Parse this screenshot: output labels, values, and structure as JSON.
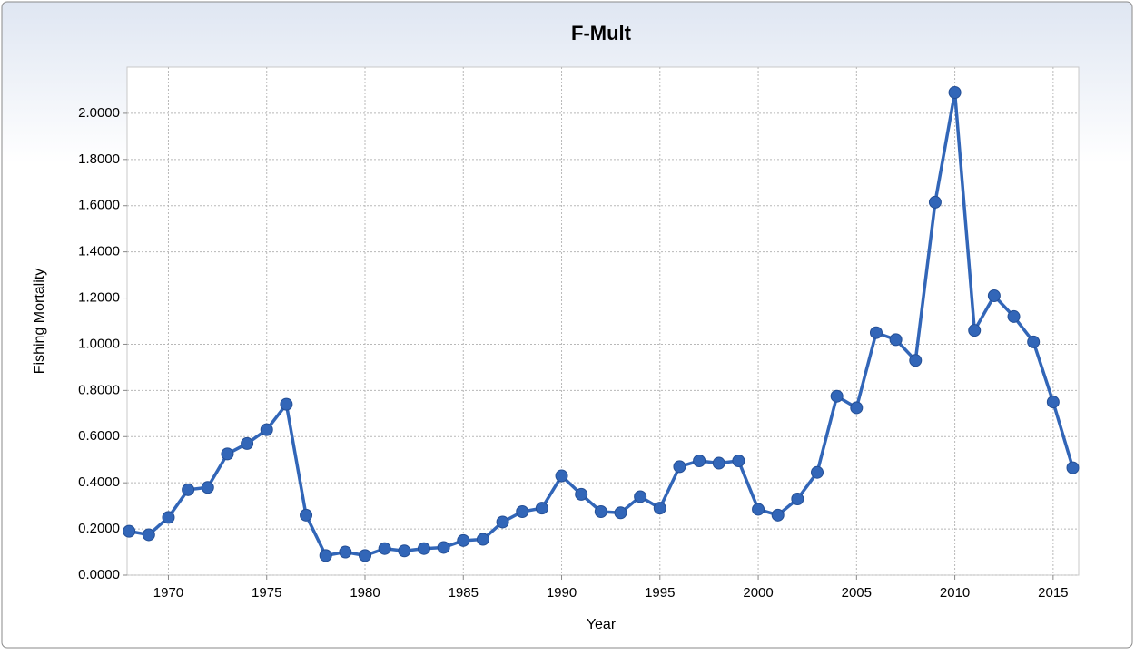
{
  "chart_data": {
    "type": "line",
    "title": "F-Mult",
    "x_label": "Year",
    "y_label": "Fishing Mortality",
    "x": [
      1968,
      1969,
      1970,
      1971,
      1972,
      1973,
      1974,
      1975,
      1976,
      1977,
      1978,
      1979,
      1980,
      1981,
      1982,
      1983,
      1984,
      1985,
      1986,
      1987,
      1988,
      1989,
      1990,
      1991,
      1992,
      1993,
      1994,
      1995,
      1996,
      1997,
      1998,
      1999,
      2000,
      2001,
      2002,
      2003,
      2004,
      2005,
      2006,
      2007,
      2008,
      2009,
      2010,
      2011,
      2012,
      2013,
      2014,
      2015,
      2016
    ],
    "series": [
      {
        "name": "F-Mult",
        "color": "#3266b8",
        "values": [
          0.19,
          0.175,
          0.25,
          0.37,
          0.38,
          0.525,
          0.57,
          0.63,
          0.74,
          0.26,
          0.085,
          0.1,
          0.085,
          0.115,
          0.105,
          0.115,
          0.12,
          0.15,
          0.155,
          0.23,
          0.275,
          0.29,
          0.43,
          0.35,
          0.275,
          0.27,
          0.34,
          0.29,
          0.47,
          0.495,
          0.485,
          0.495,
          0.285,
          0.26,
          0.33,
          0.445,
          0.775,
          0.725,
          1.05,
          1.02,
          0.93,
          1.615,
          2.09,
          1.06,
          1.21,
          1.12,
          1.01,
          0.75,
          0.465
        ]
      }
    ],
    "xlim": [
      1967.9,
      2016.3
    ],
    "xticks": [
      1970,
      1975,
      1980,
      1985,
      1990,
      1995,
      2000,
      2005,
      2010,
      2015
    ],
    "ylim": [
      0,
      2.2
    ],
    "yticks": [
      {
        "value": 0,
        "label": "0.0000"
      },
      {
        "value": 0.2,
        "label": "0.2000"
      },
      {
        "value": 0.4,
        "label": "0.4000"
      },
      {
        "value": 0.6,
        "label": "0.6000"
      },
      {
        "value": 0.8,
        "label": "0.8000"
      },
      {
        "value": 1,
        "label": "1.0000"
      },
      {
        "value": 1.2,
        "label": "1.2000"
      },
      {
        "value": 1.4,
        "label": "1.4000"
      },
      {
        "value": 1.6,
        "label": "1.6000"
      },
      {
        "value": 1.8,
        "label": "1.8000"
      },
      {
        "value": 2,
        "label": "2.0000"
      }
    ],
    "grid": true
  }
}
